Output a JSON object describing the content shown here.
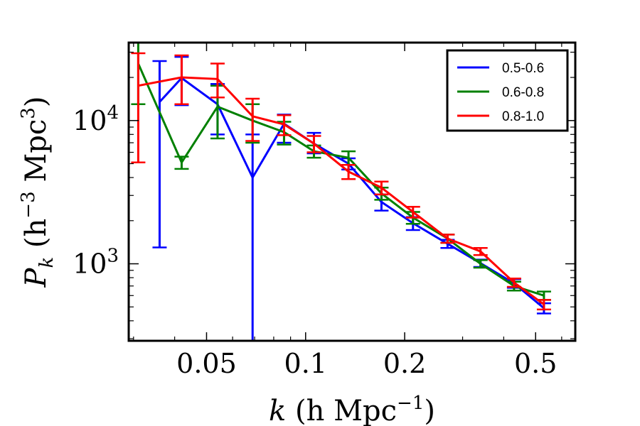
{
  "chart_data": {
    "type": "line",
    "xscale": "log",
    "yscale": "log",
    "xlim": [
      0.029,
      0.66
    ],
    "ylim": [
      290,
      35000
    ],
    "xticks": [
      {
        "value": 0.05,
        "label": "0.05"
      },
      {
        "value": 0.1,
        "label": "0.1"
      },
      {
        "value": 0.2,
        "label": "0.2"
      },
      {
        "value": 0.5,
        "label": "0.5"
      }
    ],
    "yticks": [
      {
        "value": 1000,
        "base": "10",
        "exp": "3"
      },
      {
        "value": 10000,
        "base": "10",
        "exp": "4"
      }
    ],
    "xlabel": {
      "main": "k",
      "text": " (h Mpc",
      "sup": "−1",
      "close": ")"
    },
    "ylabel": {
      "main": "P",
      "sub": "k",
      "text": " (h",
      "sup1": "−3",
      "mid": " Mpc",
      "sup2": "3",
      "close": ")"
    },
    "legend_position": "top-right",
    "grid": false,
    "series": [
      {
        "name": "0.5-0.6",
        "color": "#0000ff",
        "x": [
          0.036,
          0.042,
          0.054,
          0.069,
          0.086,
          0.106,
          0.135,
          0.17,
          0.212,
          0.27,
          0.34,
          0.43,
          0.53
        ],
        "y": [
          13500,
          19800,
          13000,
          4000,
          9500,
          6900,
          5000,
          2700,
          1920,
          1380,
          1010,
          730,
          490
        ],
        "err_low": [
          12200,
          7000,
          5000,
          3710,
          2500,
          1000,
          450,
          350,
          200,
          90,
          60,
          50,
          40
        ],
        "err_high": [
          12500,
          8000,
          5000,
          4000,
          1500,
          1300,
          450,
          350,
          200,
          90,
          60,
          50,
          40
        ]
      },
      {
        "name": "0.6-0.8",
        "color": "#008000",
        "x": [
          0.031,
          0.042,
          0.054,
          0.069,
          0.086,
          0.106,
          0.135,
          0.17,
          0.212,
          0.27,
          0.34,
          0.43,
          0.53
        ],
        "y": [
          25000,
          5100,
          12500,
          10000,
          8300,
          6100,
          5500,
          3100,
          2100,
          1500,
          1000,
          700,
          600
        ],
        "err_low": [
          12000,
          500,
          5000,
          3000,
          1500,
          600,
          600,
          300,
          200,
          100,
          60,
          50,
          40
        ],
        "err_high": [
          20000,
          500,
          5000,
          3000,
          1500,
          600,
          600,
          300,
          200,
          100,
          60,
          50,
          40
        ]
      },
      {
        "name": "0.8-1.0",
        "color": "#ff0000",
        "x": [
          0.031,
          0.042,
          0.054,
          0.069,
          0.086,
          0.106,
          0.135,
          0.17,
          0.212,
          0.27,
          0.34,
          0.43,
          0.53
        ],
        "y": [
          17500,
          20000,
          19500,
          10700,
          9400,
          6900,
          4400,
          3400,
          2300,
          1500,
          1220,
          740,
          520
        ],
        "err_low": [
          12400,
          7000,
          5000,
          3500,
          1500,
          900,
          500,
          350,
          200,
          100,
          70,
          50,
          40
        ],
        "err_high": [
          12000,
          8500,
          5500,
          3500,
          1500,
          900,
          500,
          350,
          200,
          100,
          70,
          50,
          40
        ]
      }
    ]
  }
}
